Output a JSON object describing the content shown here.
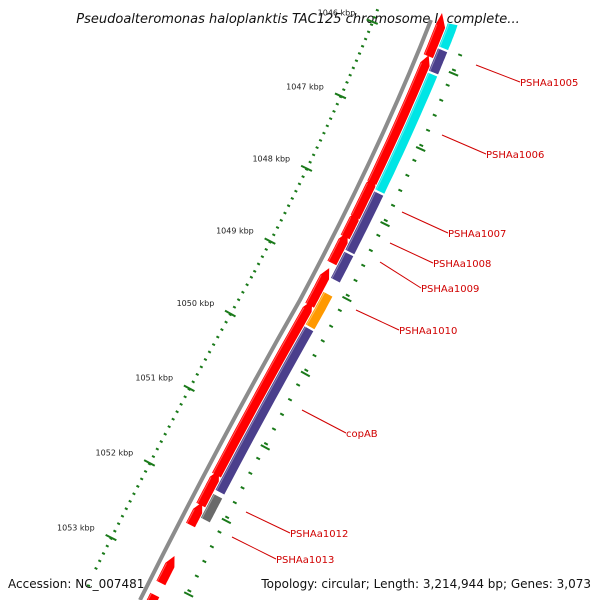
{
  "title": "Pseudoalteromonas haloplanktis TAC125 chromosome I, complete...",
  "accession": "Accession: NC_007481",
  "topology": "Topology: circular; Length: 3,214,944 bp; Genes: 3,073",
  "colors": {
    "backbone": "#8c8c8c",
    "forward_gene": "#ff0000",
    "reverse_cds": "#4b3f8c",
    "rna": "#00e5e5",
    "orange_feature": "#ff9900",
    "gray_feature": "#6a6a6a",
    "tick": "#1a7a1a",
    "label": "#d00000"
  },
  "scale_labels": [
    "1046 kbp",
    "1047 kbp",
    "1048 kbp",
    "1049 kbp",
    "1050 kbp",
    "1051 kbp",
    "1052 kbp",
    "1053 kbp"
  ],
  "gene_labels": [
    "PSHAa1005",
    "PSHAa1006",
    "PSHAa1007",
    "PSHAa1008",
    "PSHAa1009",
    "PSHAa1010",
    "copAB",
    "PSHAa1012",
    "PSHAa1013"
  ]
}
